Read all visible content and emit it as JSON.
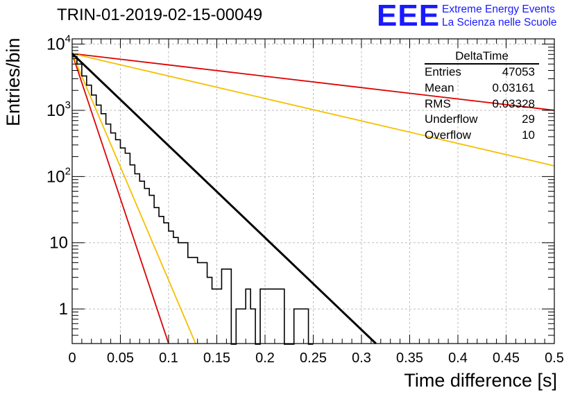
{
  "header": {
    "title": "TRIN-01-2019-02-15-00049",
    "logo_mark": "EEE",
    "logo_line1": "Extreme Energy Events",
    "logo_line2": "La Scienza nelle Scuole"
  },
  "stats": {
    "name": "DeltaTime",
    "rows": [
      {
        "label": "Entries",
        "value": "47053"
      },
      {
        "label": "Mean",
        "value": "0.03161"
      },
      {
        "label": "RMS",
        "value": "0.03328"
      },
      {
        "label": "Underflow",
        "value": "29"
      },
      {
        "label": "Overflow",
        "value": "10"
      }
    ]
  },
  "colors": {
    "histogram": "#000000",
    "fit": "#000000",
    "red": "#dd0000",
    "yellow": "#f5c000",
    "grid": "#bdbdbd"
  },
  "chart_data": {
    "type": "line",
    "xlabel": "Time difference [s]",
    "ylabel": "Entries/bin",
    "xlim": [
      0,
      0.5
    ],
    "ylim_log": [
      0.3,
      12000
    ],
    "log_y": true,
    "grid": true,
    "x_ticks": [
      "0",
      "0.05",
      "0.1",
      "0.15",
      "0.2",
      "0.25",
      "0.3",
      "0.35",
      "0.4",
      "0.45",
      "0.5"
    ],
    "y_ticks": [
      {
        "value": 1,
        "base": "1",
        "exp": ""
      },
      {
        "value": 10,
        "base": "10",
        "exp": ""
      },
      {
        "value": 100,
        "base": "10",
        "exp": "2"
      },
      {
        "value": 1000,
        "base": "10",
        "exp": "3"
      },
      {
        "value": 10000,
        "base": "10",
        "exp": "4"
      }
    ],
    "histogram": {
      "bin_width": 0.005,
      "counts": [
        6500,
        5000,
        3300,
        2400,
        1700,
        1200,
        890,
        620,
        455,
        360,
        270,
        225,
        150,
        110,
        85,
        66,
        52,
        34,
        25,
        20,
        15,
        12,
        10,
        10,
        6,
        6,
        5,
        5,
        3,
        2,
        2,
        4,
        4,
        0,
        1,
        1,
        2,
        1,
        0,
        2,
        2,
        2,
        2,
        2,
        0,
        0,
        1,
        1,
        1,
        0
      ]
    },
    "series": [
      {
        "role": "fit",
        "color_key": "fit",
        "x": [
          0,
          0.315
        ],
        "y": [
          7200,
          0.3
        ]
      },
      {
        "role": "reference",
        "color_key": "red",
        "x": [
          0,
          0.5
        ],
        "y": [
          7200,
          1000
        ]
      },
      {
        "role": "reference",
        "color_key": "yellow",
        "x": [
          0,
          0.5
        ],
        "y": [
          7200,
          145
        ]
      },
      {
        "role": "reference",
        "color_key": "red",
        "x": [
          0,
          0.1
        ],
        "y": [
          7200,
          0.3
        ]
      },
      {
        "role": "reference",
        "color_key": "yellow",
        "x": [
          0,
          0.128
        ],
        "y": [
          7200,
          0.3
        ]
      }
    ]
  }
}
